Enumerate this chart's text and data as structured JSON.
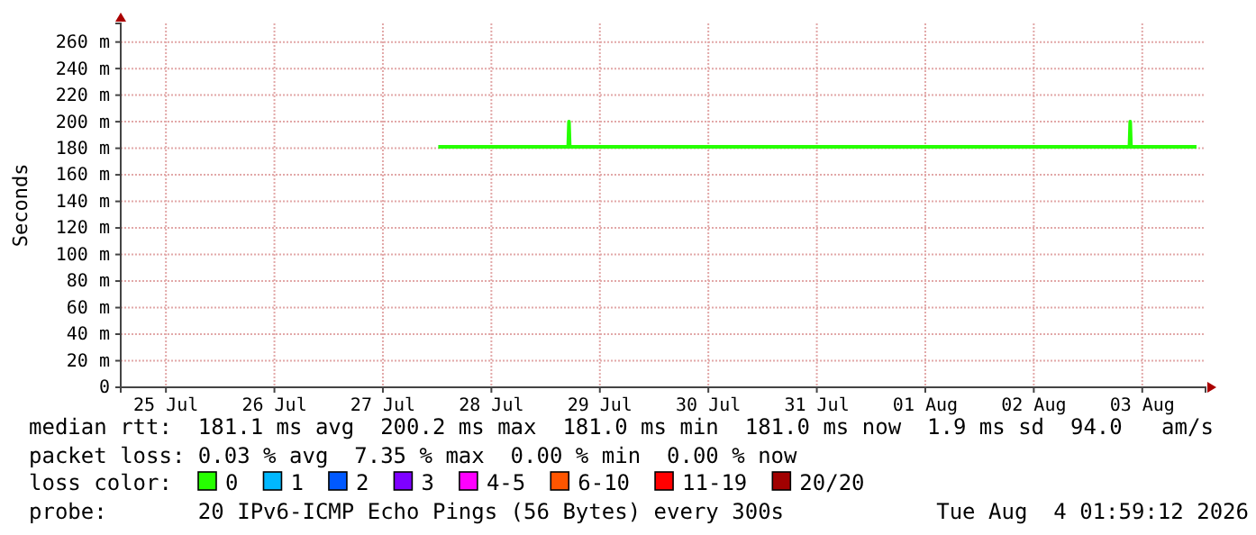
{
  "chart_data": {
    "type": "line",
    "ylabel": "Seconds",
    "legend_title": "loss color:",
    "legend": "bottom",
    "grid": true,
    "marker": "none",
    "line_style": "solid",
    "xlim": [
      "2026-07-25T02:00",
      "2026-08-04T02:00"
    ],
    "xticks": [
      {
        "value": "2026-07-25T12:00",
        "label": "25 Jul"
      },
      {
        "value": "2026-07-26T12:00",
        "label": "26 Jul"
      },
      {
        "value": "2026-07-27T12:00",
        "label": "27 Jul"
      },
      {
        "value": "2026-07-28T12:00",
        "label": "28 Jul"
      },
      {
        "value": "2026-07-29T12:00",
        "label": "29 Jul"
      },
      {
        "value": "2026-07-30T12:00",
        "label": "30 Jul"
      },
      {
        "value": "2026-07-31T12:00",
        "label": "31 Jul"
      },
      {
        "value": "2026-08-01T12:00",
        "label": "01 Aug"
      },
      {
        "value": "2026-08-02T12:00",
        "label": "02 Aug"
      },
      {
        "value": "2026-08-03T12:00",
        "label": "03 Aug"
      }
    ],
    "ylim": [
      0,
      274
    ],
    "yticks": [
      0,
      {
        "value": 20,
        "label": "20 m"
      },
      {
        "value": 40,
        "label": "40 m"
      },
      {
        "value": 60,
        "label": "60 m"
      },
      {
        "value": 80,
        "label": "80 m"
      },
      {
        "value": 100,
        "label": "100 m"
      },
      {
        "value": 120,
        "label": "120 m"
      },
      {
        "value": 140,
        "label": "140 m"
      },
      {
        "value": 160,
        "label": "160 m"
      },
      {
        "value": 180,
        "label": "180 m"
      },
      {
        "value": 200,
        "label": "200 m"
      },
      {
        "value": 220,
        "label": "220 m"
      },
      {
        "value": 240,
        "label": "240 m"
      },
      {
        "value": 260,
        "label": "260 m"
      }
    ],
    "x": [
      "2026-07-28T00:15",
      "2026-07-29T05:00",
      "2026-07-29T05:10",
      "2026-07-29T05:20",
      "2026-08-03T09:10",
      "2026-08-03T09:20",
      "2026-08-03T09:30",
      "2026-08-04T00:00"
    ],
    "series": [
      {
        "name": "0",
        "color": "#26ff00",
        "values": [
          181,
          181,
          200,
          181,
          181,
          200,
          181,
          181
        ]
      },
      {
        "name": "1",
        "color": "#00b8ff",
        "values": [
          null,
          null,
          null,
          null,
          null,
          null,
          null,
          null
        ]
      },
      {
        "name": "2",
        "color": "#0059ff",
        "values": [
          null,
          null,
          null,
          null,
          null,
          null,
          null,
          null
        ]
      },
      {
        "name": "3",
        "color": "#7e00ff",
        "values": [
          null,
          null,
          null,
          null,
          null,
          null,
          null,
          null
        ]
      },
      {
        "name": "4-5",
        "color": "#ff00fe",
        "values": [
          null,
          null,
          null,
          null,
          null,
          null,
          null,
          null
        ]
      },
      {
        "name": "6-10",
        "color": "#ff5500",
        "values": [
          null,
          null,
          null,
          null,
          null,
          null,
          null,
          null
        ]
      },
      {
        "name": "11-19",
        "color": "#ff0000",
        "values": [
          null,
          null,
          null,
          null,
          null,
          null,
          null,
          null
        ]
      },
      {
        "name": "20/20",
        "color": "#a10000",
        "values": [
          null,
          null,
          null,
          null,
          null,
          null,
          null,
          null
        ]
      }
    ],
    "annotations": [
      "median rtt:  181.1 ms avg  200.2 ms max  181.0 ms min  181.0 ms now  1.9 ms sd  94.0   am/s",
      "packet loss: 0.03 % avg  7.35 % max  0.00 % min  0.00 % now",
      "probe:       20 IPv6-ICMP Echo Pings (56 Bytes) every 300s",
      "Tue Aug  4 01:59:12 2026"
    ]
  }
}
